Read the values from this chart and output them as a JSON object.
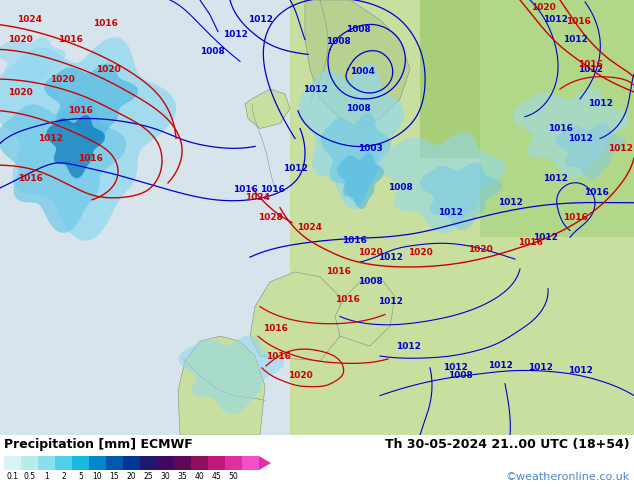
{
  "title_left": "Precipitation [mm] ECMWF",
  "title_right": "Th 30-05-2024 21..00 UTC (18+54)",
  "credit": "©weatheronline.co.uk",
  "colorbar_labels": [
    "0.1",
    "0.5",
    "1",
    "2",
    "5",
    "10",
    "15",
    "20",
    "25",
    "30",
    "35",
    "40",
    "45",
    "50"
  ],
  "colorbar_colors": [
    "#d8f4f4",
    "#b8ecec",
    "#88e0ec",
    "#50d0e8",
    "#18b8e0",
    "#0088c8",
    "#0058b0",
    "#003898",
    "#201870",
    "#400860",
    "#600858",
    "#901060",
    "#c01878",
    "#e030a0",
    "#f050c8"
  ],
  "title_fontsize": 9,
  "credit_fontsize": 8,
  "credit_color": "#4488cc",
  "land_color": "#c8dfa0",
  "ocean_color": "#d8eef8",
  "land_east_color": "#a8d070",
  "coast_color": "#888888",
  "precip_colors": [
    "#90d8f0",
    "#60c8e8",
    "#30a8d8",
    "#0878b8",
    "#0040a0"
  ],
  "blue_line_color": "#0000cc",
  "red_line_color": "#cc0000"
}
